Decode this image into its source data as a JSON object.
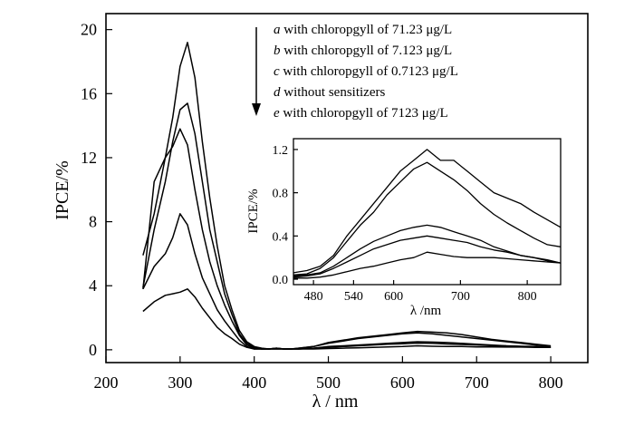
{
  "chart_data": [
    {
      "type": "line",
      "role": "main",
      "xlabel": "λ / nm",
      "ylabel": "IPCE/%",
      "xlim": [
        200,
        850
      ],
      "ylim": [
        -0.8,
        21
      ],
      "xticks": [
        200,
        300,
        400,
        500,
        600,
        700,
        800
      ],
      "yticks": [
        0,
        4,
        8,
        12,
        16,
        20
      ],
      "grid": false,
      "legend_position": "top-right",
      "arrow": "down",
      "series": [
        {
          "name": "a with chloropgyll of 71.23  μg/L",
          "x": [
            250,
            265,
            280,
            290,
            300,
            310,
            320,
            330,
            340,
            350,
            360,
            370,
            380,
            390,
            400,
            410,
            420,
            430,
            440,
            450,
            460,
            480,
            500,
            520,
            540,
            560,
            580,
            600,
            620,
            640,
            660,
            680,
            700,
            720,
            740,
            760,
            780,
            800
          ],
          "y": [
            5.9,
            8.5,
            12,
            14.5,
            17.7,
            19.2,
            17,
            13,
            9.5,
            6.5,
            4,
            2.5,
            1.2,
            0.5,
            0.2,
            0.1,
            0.05,
            0.1,
            0.05,
            0.05,
            0.1,
            0.2,
            0.45,
            0.6,
            0.75,
            0.85,
            0.95,
            1.05,
            1.15,
            1.1,
            1.05,
            0.95,
            0.8,
            0.65,
            0.55,
            0.45,
            0.35,
            0.25
          ]
        },
        {
          "name": "b with chloropgyll of 7.123  μg/L",
          "x": [
            250,
            265,
            280,
            290,
            300,
            310,
            320,
            330,
            340,
            350,
            360,
            370,
            380,
            390,
            400,
            410,
            420,
            430,
            440,
            450,
            460,
            480,
            500,
            520,
            540,
            560,
            580,
            600,
            620,
            640,
            660,
            680,
            700,
            720,
            740,
            760,
            780,
            800
          ],
          "y": [
            3.9,
            7.5,
            10.5,
            13,
            15,
            15.4,
            13.5,
            10.5,
            7.5,
            5.5,
            3.5,
            2.2,
            1,
            0.4,
            0.15,
            0.05,
            0.05,
            0.1,
            0.05,
            0.05,
            0.1,
            0.2,
            0.4,
            0.55,
            0.7,
            0.8,
            0.9,
            1,
            1.05,
            1,
            0.9,
            0.8,
            0.7,
            0.6,
            0.5,
            0.4,
            0.3,
            0.2
          ]
        },
        {
          "name": "c with chloropgyll of 0.7123  μg/L",
          "x": [
            250,
            265,
            280,
            290,
            300,
            310,
            320,
            330,
            340,
            350,
            360,
            370,
            380,
            390,
            400,
            410,
            420,
            430,
            440,
            450,
            460,
            480,
            500,
            520,
            540,
            560,
            580,
            600,
            620,
            640,
            660,
            680,
            700,
            720,
            740,
            760,
            780,
            800
          ],
          "y": [
            3.8,
            10.5,
            12,
            12.7,
            13.8,
            12.8,
            10,
            7.5,
            5.5,
            4,
            2.8,
            1.8,
            0.9,
            0.3,
            0.1,
            0.05,
            0.05,
            0.1,
            0.05,
            0.05,
            0.05,
            0.1,
            0.2,
            0.25,
            0.3,
            0.35,
            0.4,
            0.45,
            0.5,
            0.48,
            0.45,
            0.4,
            0.35,
            0.3,
            0.25,
            0.22,
            0.2,
            0.15
          ]
        },
        {
          "name": "d without sensitizers",
          "x": [
            250,
            265,
            280,
            290,
            300,
            310,
            320,
            330,
            340,
            350,
            360,
            370,
            380,
            390,
            400,
            410,
            420,
            430,
            440,
            450,
            460,
            480,
            500,
            520,
            540,
            560,
            580,
            600,
            620,
            640,
            660,
            680,
            700,
            720,
            740,
            760,
            780,
            800
          ],
          "y": [
            3.8,
            5.2,
            6,
            7,
            8.5,
            7.8,
            6,
            4.5,
            3.5,
            2.5,
            1.8,
            1.2,
            0.6,
            0.2,
            0.05,
            0.05,
            0.05,
            0.05,
            0.05,
            0.05,
            0.05,
            0.1,
            0.15,
            0.2,
            0.25,
            0.3,
            0.35,
            0.38,
            0.42,
            0.4,
            0.36,
            0.33,
            0.3,
            0.26,
            0.24,
            0.2,
            0.18,
            0.15
          ]
        },
        {
          "name": "e with chloropgyll of 7123  μg/L",
          "x": [
            250,
            265,
            280,
            290,
            300,
            310,
            320,
            330,
            340,
            350,
            360,
            370,
            380,
            390,
            400,
            410,
            420,
            430,
            440,
            450,
            460,
            480,
            500,
            520,
            540,
            560,
            580,
            600,
            620,
            640,
            660,
            680,
            700,
            720,
            740,
            760,
            780,
            800
          ],
          "y": [
            2.4,
            3,
            3.4,
            3.5,
            3.6,
            3.8,
            3.3,
            2.6,
            2,
            1.4,
            1,
            0.7,
            0.35,
            0.15,
            0.05,
            0.05,
            0.05,
            0.05,
            0.05,
            0.05,
            0.05,
            0.05,
            0.08,
            0.1,
            0.12,
            0.15,
            0.18,
            0.2,
            0.25,
            0.22,
            0.2,
            0.2,
            0.18,
            0.18,
            0.17,
            0.17,
            0.15,
            0.15
          ]
        }
      ]
    },
    {
      "type": "line",
      "role": "inset",
      "xlabel": "λ /nm",
      "ylabel": "IPCE/%",
      "xlim": [
        450,
        850
      ],
      "ylim": [
        -0.05,
        1.3
      ],
      "xticks": [
        480,
        540,
        600,
        700,
        800
      ],
      "yticks": [
        0.0,
        0.4,
        0.8,
        1.2
      ],
      "ytick_labels": [
        "0.0",
        "0.4",
        "0.8",
        "1.2"
      ],
      "grid": false,
      "series": [
        {
          "x": [
            450,
            470,
            490,
            510,
            530,
            550,
            570,
            590,
            610,
            630,
            650,
            670,
            690,
            710,
            730,
            750,
            770,
            790,
            810,
            830,
            850
          ],
          "y": [
            0.06,
            0.08,
            0.12,
            0.22,
            0.4,
            0.55,
            0.7,
            0.85,
            1.0,
            1.1,
            1.2,
            1.1,
            1.1,
            1.0,
            0.9,
            0.8,
            0.75,
            0.7,
            0.62,
            0.55,
            0.48
          ]
        },
        {
          "x": [
            450,
            470,
            490,
            510,
            530,
            550,
            570,
            590,
            610,
            630,
            650,
            670,
            690,
            710,
            730,
            750,
            770,
            790,
            810,
            830,
            850
          ],
          "y": [
            0.04,
            0.05,
            0.1,
            0.2,
            0.35,
            0.5,
            0.62,
            0.78,
            0.9,
            1.02,
            1.08,
            1.0,
            0.92,
            0.82,
            0.7,
            0.6,
            0.52,
            0.45,
            0.38,
            0.32,
            0.3
          ]
        },
        {
          "x": [
            450,
            470,
            490,
            510,
            530,
            550,
            570,
            590,
            610,
            630,
            650,
            670,
            690,
            710,
            730,
            750,
            770,
            790,
            810,
            830,
            850
          ],
          "y": [
            0.03,
            0.04,
            0.06,
            0.12,
            0.2,
            0.28,
            0.35,
            0.4,
            0.45,
            0.48,
            0.5,
            0.48,
            0.44,
            0.4,
            0.36,
            0.3,
            0.26,
            0.22,
            0.2,
            0.17,
            0.15
          ]
        },
        {
          "x": [
            450,
            470,
            490,
            510,
            530,
            550,
            570,
            590,
            610,
            630,
            650,
            670,
            690,
            710,
            730,
            750,
            770,
            790,
            810,
            830,
            850
          ],
          "y": [
            0.02,
            0.03,
            0.05,
            0.1,
            0.16,
            0.22,
            0.28,
            0.32,
            0.36,
            0.38,
            0.4,
            0.38,
            0.36,
            0.34,
            0.3,
            0.27,
            0.25,
            0.22,
            0.2,
            0.18,
            0.15
          ]
        },
        {
          "x": [
            450,
            470,
            490,
            510,
            530,
            550,
            570,
            590,
            610,
            630,
            650,
            670,
            690,
            710,
            730,
            750,
            770,
            790,
            810,
            830,
            850
          ],
          "y": [
            0.01,
            0.01,
            0.02,
            0.04,
            0.07,
            0.1,
            0.12,
            0.15,
            0.18,
            0.2,
            0.25,
            0.23,
            0.21,
            0.2,
            0.2,
            0.2,
            0.19,
            0.18,
            0.17,
            0.16,
            0.15
          ]
        }
      ]
    }
  ]
}
